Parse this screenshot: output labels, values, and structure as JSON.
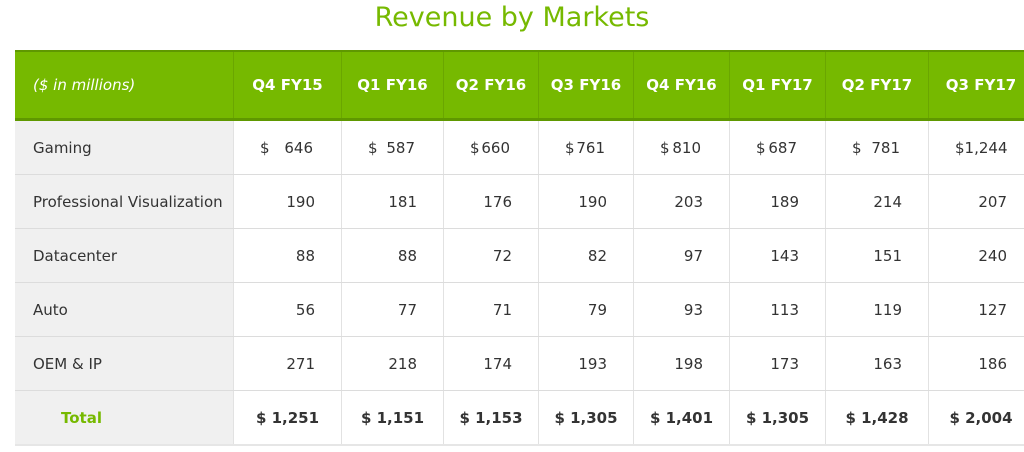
{
  "title": "Revenue by Markets",
  "header": {
    "unit_label": "($ in millions)",
    "columns": [
      "Q4 FY15",
      "Q1 FY16",
      "Q2 FY16",
      "Q3 FY16",
      "Q4 FY16",
      "Q1 FY17",
      "Q2 FY17",
      "Q3 FY17"
    ]
  },
  "currency_symbol": "$",
  "rows": [
    {
      "label": "Gaming",
      "values": [
        "646",
        "587",
        "660",
        "761",
        "810",
        "687",
        "781",
        "1,244"
      ],
      "currency": true
    },
    {
      "label": "Professional Visualization",
      "values": [
        "190",
        "181",
        "176",
        "190",
        "203",
        "189",
        "214",
        "207"
      ]
    },
    {
      "label": "Datacenter",
      "values": [
        "88",
        "88",
        "72",
        "82",
        "97",
        "143",
        "151",
        "240"
      ]
    },
    {
      "label": "Auto",
      "values": [
        "56",
        "77",
        "71",
        "79",
        "93",
        "113",
        "119",
        "127"
      ]
    },
    {
      "label": "OEM & IP",
      "values": [
        "271",
        "218",
        "174",
        "193",
        "198",
        "173",
        "163",
        "186"
      ]
    }
  ],
  "total": {
    "label": "Total",
    "values": [
      "$ 1,251",
      "$ 1,151",
      "$ 1,153",
      "$ 1,305",
      "$ 1,401",
      "$ 1,305",
      "$ 1,428",
      "$ 2,004"
    ]
  },
  "colors": {
    "accent": "#76b900",
    "label_bg": "#f0f0f0",
    "text": "#333333"
  }
}
